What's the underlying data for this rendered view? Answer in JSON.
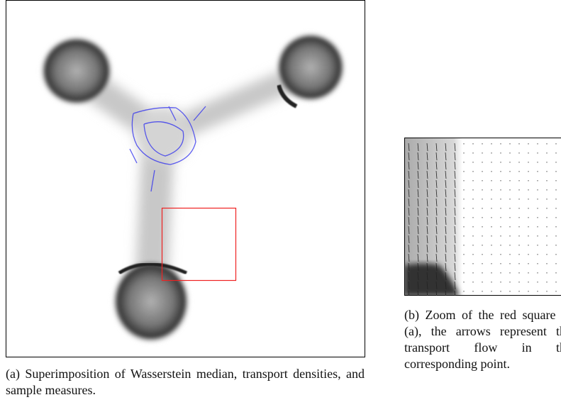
{
  "figure": {
    "subfigures": [
      {
        "caption": "(a) Superimposition of Wasserstein median, transport densities, and sample measures."
      },
      {
        "caption": "(b) Zoom of the red square in (a), the arrows represent the transport flow in the corresponding point."
      }
    ]
  }
}
